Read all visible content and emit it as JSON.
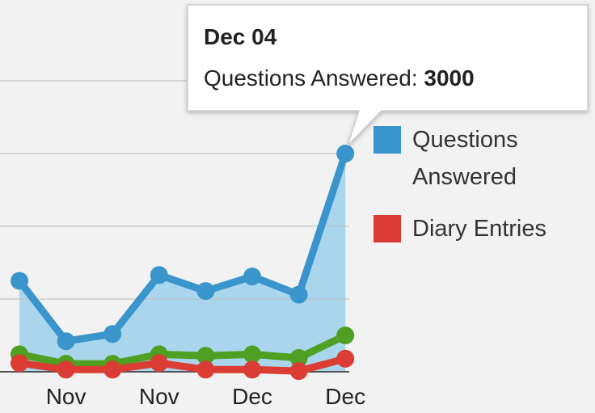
{
  "chart_data": {
    "type": "area-line",
    "categories": [
      null,
      "Nov",
      null,
      "Nov",
      null,
      "Dec",
      null,
      "Dec"
    ],
    "series": [
      {
        "name": "Questions Answered",
        "color": "#3a95cd",
        "area": "#a9d6ec",
        "values": [
          1250,
          420,
          520,
          1330,
          1110,
          1310,
          1060,
          3000
        ]
      },
      {
        "color": "#4f9f22",
        "values": [
          240,
          110,
          110,
          240,
          220,
          240,
          190,
          500
        ]
      },
      {
        "name": "Diary Entries",
        "color": "#db3c33",
        "values": [
          120,
          30,
          30,
          120,
          30,
          30,
          10,
          180
        ]
      }
    ],
    "ylim": [
      0,
      5000
    ],
    "yticks": [
      0,
      1000,
      2000,
      3000,
      4000
    ],
    "grid": true,
    "tooltip": {
      "title": "Dec 04",
      "label": "Questions Answered:",
      "point": 7
    }
  }
}
